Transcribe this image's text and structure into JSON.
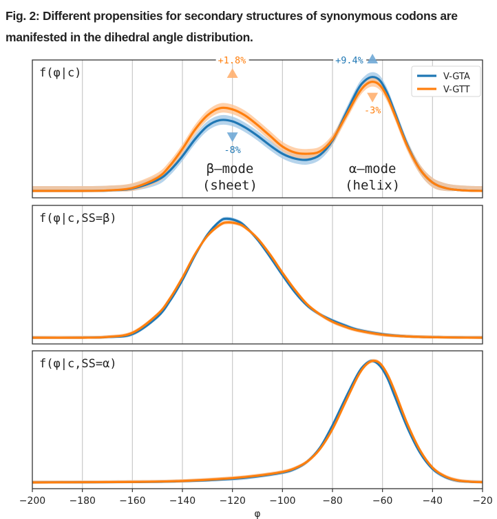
{
  "figure": {
    "title": "Fig. 2: Different propensities for secondary structures of synonymous codons are manifested in the dihedral angle distribution."
  },
  "colors": {
    "v_gta": "#1f77b4",
    "v_gtt": "#ff7f0e",
    "v_gta_band": "#9ec5e6",
    "v_gtt_band": "#ffc28f",
    "grid": "#c8c8c8",
    "axis": "#333333"
  },
  "chart_data": [
    {
      "type": "line",
      "panel": "top",
      "title": "f(φ|c)",
      "xlabel": "",
      "ylabel": "",
      "xlim": [
        -200,
        -20
      ],
      "ylim": [
        0,
        1.0
      ],
      "grid": "vertical",
      "legend": {
        "position": "top-right",
        "entries": [
          "V-GTA",
          "V-GTT"
        ]
      },
      "x": [
        -200,
        -190,
        -180,
        -170,
        -160,
        -150,
        -145,
        -140,
        -135,
        -130,
        -125,
        -120,
        -115,
        -110,
        -105,
        -100,
        -95,
        -90,
        -85,
        -80,
        -75,
        -70,
        -67,
        -64,
        -61,
        -58,
        -55,
        -50,
        -45,
        -40,
        -35,
        -30,
        -25,
        -20
      ],
      "series": [
        {
          "name": "V-GTA",
          "values": [
            0.0,
            0.0,
            0.0,
            0.003,
            0.02,
            0.09,
            0.17,
            0.29,
            0.43,
            0.54,
            0.59,
            0.58,
            0.53,
            0.46,
            0.38,
            0.31,
            0.27,
            0.26,
            0.3,
            0.42,
            0.63,
            0.84,
            0.92,
            0.95,
            0.92,
            0.81,
            0.65,
            0.38,
            0.18,
            0.07,
            0.025,
            0.008,
            0.002,
            0.0
          ]
        },
        {
          "name": "V-GTT",
          "values": [
            0.0,
            0.0,
            0.0,
            0.004,
            0.025,
            0.11,
            0.21,
            0.35,
            0.51,
            0.63,
            0.69,
            0.68,
            0.63,
            0.55,
            0.46,
            0.37,
            0.32,
            0.31,
            0.33,
            0.43,
            0.61,
            0.8,
            0.88,
            0.91,
            0.88,
            0.78,
            0.63,
            0.37,
            0.18,
            0.07,
            0.025,
            0.008,
            0.002,
            0.0
          ]
        }
      ],
      "band_halfwidth": {
        "V-GTA": 0.04,
        "V-GTT": 0.04
      },
      "annotations": [
        {
          "text": "+1.8%",
          "x": -120,
          "series": "V-GTT",
          "marker": "up-triangle"
        },
        {
          "text": "-8%",
          "x": -120,
          "series": "V-GTA",
          "marker": "down-triangle"
        },
        {
          "text": "+9.4%",
          "x": -64,
          "series": "V-GTA",
          "marker": "up-triangle"
        },
        {
          "text": "-3%",
          "x": -64,
          "series": "V-GTT",
          "marker": "down-triangle"
        },
        {
          "text": "β–mode",
          "x": -121
        },
        {
          "text": "(sheet)",
          "x": -121
        },
        {
          "text": "α–mode",
          "x": -64
        },
        {
          "text": "(helix)",
          "x": -64
        }
      ]
    },
    {
      "type": "line",
      "panel": "middle",
      "title": "f(φ|c,SS=β)",
      "xlim": [
        -200,
        -20
      ],
      "ylim": [
        0,
        1.0
      ],
      "grid": "vertical",
      "x": [
        -200,
        -180,
        -170,
        -160,
        -150,
        -145,
        -140,
        -135,
        -130,
        -125,
        -122,
        -118,
        -115,
        -110,
        -105,
        -100,
        -95,
        -90,
        -85,
        -80,
        -75,
        -70,
        -60,
        -50,
        -40,
        -30,
        -20
      ],
      "series": [
        {
          "name": "V-GTA",
          "values": [
            0.0,
            0.0,
            0.005,
            0.03,
            0.17,
            0.3,
            0.47,
            0.67,
            0.84,
            0.95,
            0.97,
            0.95,
            0.91,
            0.8,
            0.66,
            0.51,
            0.37,
            0.26,
            0.19,
            0.14,
            0.1,
            0.065,
            0.028,
            0.01,
            0.004,
            0.001,
            0.0
          ]
        },
        {
          "name": "V-GTT",
          "values": [
            0.0,
            0.0,
            0.006,
            0.04,
            0.19,
            0.32,
            0.49,
            0.68,
            0.83,
            0.92,
            0.94,
            0.93,
            0.9,
            0.81,
            0.68,
            0.53,
            0.39,
            0.27,
            0.19,
            0.13,
            0.09,
            0.06,
            0.025,
            0.01,
            0.004,
            0.001,
            0.0
          ]
        }
      ]
    },
    {
      "type": "line",
      "panel": "bottom",
      "title": "f(φ|c,SS=α)",
      "xlabel": "φ",
      "xlim": [
        -200,
        -20
      ],
      "ylim": [
        0,
        1.0
      ],
      "grid": "vertical",
      "xticks": [
        -200,
        -180,
        -160,
        -140,
        -120,
        -100,
        -80,
        -60,
        -40,
        -20
      ],
      "xtick_labels": [
        "−200",
        "−180",
        "−160",
        "−140",
        "−120",
        "−100",
        "−80",
        "−60",
        "−40",
        "−20"
      ],
      "x": [
        -200,
        -160,
        -140,
        -120,
        -110,
        -100,
        -95,
        -90,
        -85,
        -80,
        -75,
        -70,
        -67,
        -64,
        -61,
        -58,
        -55,
        -50,
        -45,
        -40,
        -35,
        -30,
        -25,
        -20
      ],
      "series": [
        {
          "name": "V-GTA",
          "values": [
            0.0,
            0.003,
            0.01,
            0.03,
            0.05,
            0.08,
            0.11,
            0.17,
            0.28,
            0.46,
            0.67,
            0.87,
            0.95,
            0.98,
            0.94,
            0.84,
            0.69,
            0.44,
            0.24,
            0.11,
            0.045,
            0.015,
            0.005,
            0.002
          ]
        },
        {
          "name": "V-GTT",
          "values": [
            0.0,
            0.004,
            0.012,
            0.035,
            0.055,
            0.085,
            0.115,
            0.17,
            0.27,
            0.43,
            0.64,
            0.85,
            0.94,
            0.98,
            0.96,
            0.87,
            0.73,
            0.47,
            0.26,
            0.12,
            0.05,
            0.017,
            0.006,
            0.002
          ]
        }
      ]
    }
  ]
}
